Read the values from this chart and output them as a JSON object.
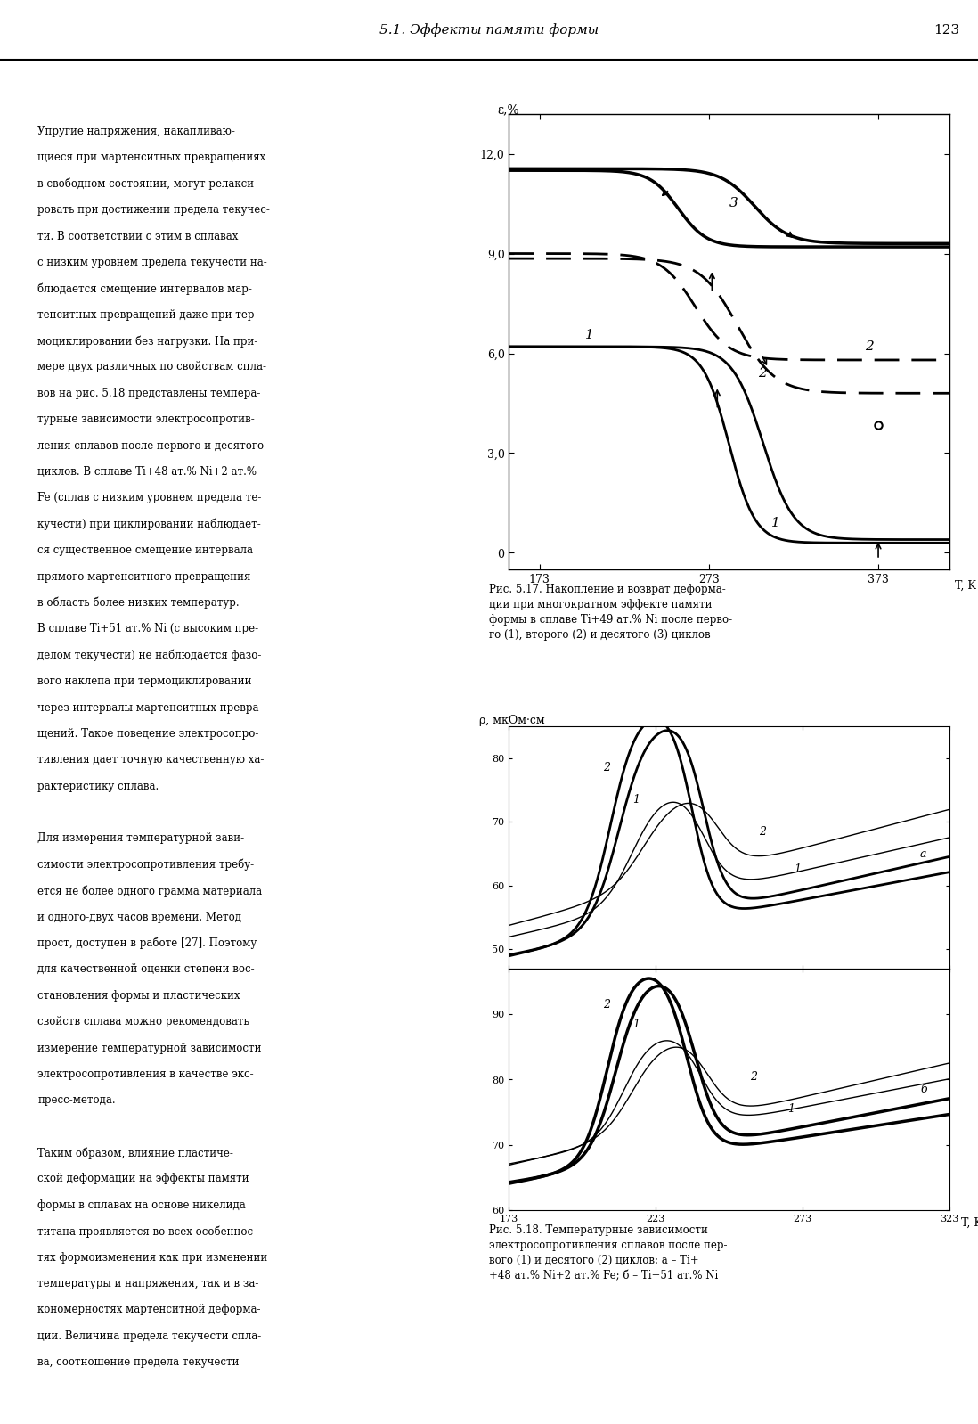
{
  "page_title": "5.1. Эффекты памяти формы",
  "page_number": "123",
  "left_text": [
    "Упругие напряжения, накапливаю-",
    "щиеся при мартенситных превращениях",
    "в свободном состоянии, могут релакси-",
    "ровать при достижении предела текучес-",
    "ти. В соответствии с этим в сплавах",
    "с низким уровнем предела текучести на-",
    "блюдается смещение интервалов мар-",
    "тенситных превращений даже при тер-",
    "моциклировании без нагрузки. На при-",
    "мере двух различных по свойствам спла-",
    "вов на рис. 5.18 представлены темпера-",
    "турные зависимости электросопротив-",
    "ления сплавов после первого и десятого",
    "циклов. В сплаве Ti+48 ат.% Ni+2 ат.%",
    "Fe (сплав с низким уровнем предела те-",
    "кучести) при циклировании наблюдает-",
    "ся существенное смещение интервала",
    "прямого мартенситного превращения",
    "в область более низких температур.",
    "В сплаве Ti+51 ат.% Ni (с высоким пре-",
    "делом текучести) не наблюдается фазо-",
    "вого наклепа при термоциклировании",
    "через интервалы мартенситных превра-",
    "щений. Такое поведение электросопро-",
    "тивления дает точную качественную ха-",
    "рактеристику сплава.",
    "",
    "Для измерения температурной зави-",
    "симости электросопротивления требу-",
    "ется не более одного грамма материала",
    "и одного-двух часов времени. Метод",
    "прост, доступен в работе [27]. Поэтому",
    "для качественной оценки степени вос-",
    "становления формы и пластических",
    "свойств сплава можно рекомендовать",
    "измерение температурной зависимости",
    "электросопротивления в качестве экс-",
    "пресс-метода.",
    "",
    "Таким образом, влияние пластиче-",
    "ской деформации на эффекты памяти",
    "формы в сплавах на основе никелида",
    "титана проявляется во всех особеннос-",
    "тях формоизменения как при изменении",
    "температуры и напряжения, так и в за-",
    "кономерностях мартенситной деформа-",
    "ции. Величина предела текучести спла-",
    "ва, соотношение предела текучести"
  ],
  "fig517_ylabel": "ε,%",
  "fig517_xlabel": "T, K",
  "fig517_xlim": [
    155,
    415
  ],
  "fig517_ylim": [
    -0.5,
    13.2
  ],
  "fig517_yticks": [
    0,
    3.0,
    6.0,
    9.0,
    12.0
  ],
  "fig517_ytick_labels": [
    "0",
    "3,0",
    "6,0",
    "9,0",
    "12,0"
  ],
  "fig517_xticks": [
    173,
    273,
    373
  ],
  "fig517_xtick_labels": [
    "173",
    "273",
    "373"
  ],
  "fig517_caption": "Рис. 5.17. Накопление и возврат деформа-\nции при многократном эффекте памяти\nформы в сплаве Ti+49 ат.% Ni после перво-\nго (1), второго (2) и десятого (3) циклов",
  "fig518_ylabel": "ρ, мкОм·см",
  "fig518_xlabel": "T, K",
  "background_color": "#ffffff"
}
